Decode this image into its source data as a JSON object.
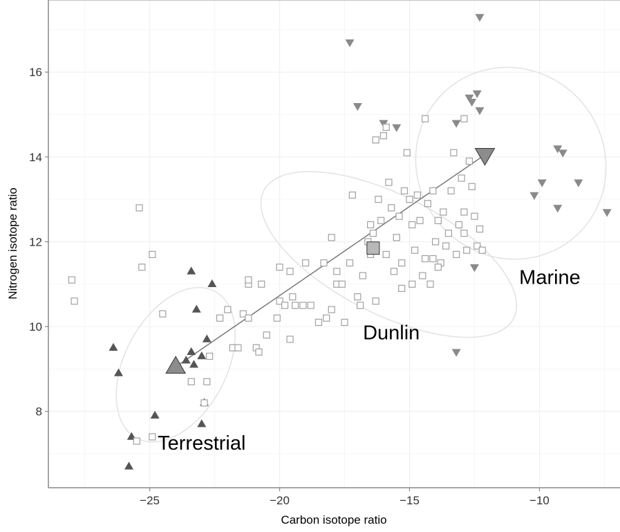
{
  "chart_data": {
    "type": "scatter",
    "title": "",
    "xlabel": "Carbon isotope ratio",
    "ylabel": "Nitrogen isotope ratio",
    "xlim": [
      -28.9,
      -6.9
    ],
    "ylim": [
      6.2,
      17.7
    ],
    "xticks": [
      -25,
      -20,
      -15,
      -10
    ],
    "yticks": [
      8,
      10,
      12,
      14,
      16
    ],
    "xtick_labels": [
      "−25",
      "−20",
      "−15",
      "−10"
    ],
    "ytick_labels": [
      "8",
      "10",
      "12",
      "14",
      "16"
    ],
    "grid": true,
    "legend": "none",
    "colors": {
      "terrestrial": "#555555",
      "marine": "#8a8a8a",
      "dunlin": "#a0a0a0",
      "mixing_line": "#777777",
      "ellipse": "#e2e2e2",
      "grid": "#f0f0f0",
      "axis": "#888888"
    },
    "labels": [
      {
        "text": "Terrestrial",
        "x": -23.0,
        "y": 7.1
      },
      {
        "text": "Dunlin",
        "x": -15.7,
        "y": 9.7
      },
      {
        "text": "Marine",
        "x": -9.6,
        "y": 11.0
      }
    ],
    "series": [
      {
        "group": "Terrestrial",
        "marker": "triangle-up",
        "points": [
          [
            -26.4,
            9.5
          ],
          [
            -26.2,
            8.9
          ],
          [
            -25.8,
            6.7
          ],
          [
            -25.7,
            7.4
          ],
          [
            -24.8,
            7.9
          ],
          [
            -23.6,
            9.2
          ],
          [
            -23.4,
            9.4
          ],
          [
            -23.3,
            9.1
          ],
          [
            -23.4,
            11.3
          ],
          [
            -23.2,
            10.4
          ],
          [
            -22.6,
            11.0
          ],
          [
            -22.8,
            9.7
          ],
          [
            -23.0,
            9.3
          ],
          [
            -22.9,
            8.2
          ],
          [
            -23.0,
            7.7
          ]
        ]
      },
      {
        "group": "Marine",
        "marker": "triangle-down",
        "points": [
          [
            -17.3,
            16.7
          ],
          [
            -17.0,
            15.2
          ],
          [
            -16.0,
            14.8
          ],
          [
            -15.5,
            14.7
          ],
          [
            -13.2,
            14.8
          ],
          [
            -12.7,
            15.4
          ],
          [
            -12.6,
            15.3
          ],
          [
            -12.4,
            15.5
          ],
          [
            -12.3,
            15.1
          ],
          [
            -12.3,
            17.3
          ],
          [
            -10.2,
            13.1
          ],
          [
            -9.9,
            13.4
          ],
          [
            -9.3,
            12.8
          ],
          [
            -9.3,
            14.2
          ],
          [
            -9.1,
            14.1
          ],
          [
            -8.5,
            13.4
          ],
          [
            -7.4,
            12.7
          ],
          [
            -12.5,
            11.4
          ],
          [
            -13.2,
            9.4
          ]
        ]
      },
      {
        "group": "Dunlin",
        "marker": "square",
        "points": [
          [
            -28.0,
            11.1
          ],
          [
            -27.9,
            10.6
          ],
          [
            -25.4,
            12.8
          ],
          [
            -25.3,
            11.4
          ],
          [
            -24.9,
            11.7
          ],
          [
            -24.9,
            7.4
          ],
          [
            -25.5,
            7.3
          ],
          [
            -24.5,
            10.3
          ],
          [
            -23.4,
            8.7
          ],
          [
            -22.8,
            8.7
          ],
          [
            -22.9,
            8.2
          ],
          [
            -22.7,
            9.3
          ],
          [
            -22.3,
            10.2
          ],
          [
            -22.0,
            10.4
          ],
          [
            -21.8,
            9.5
          ],
          [
            -21.6,
            9.5
          ],
          [
            -21.4,
            10.3
          ],
          [
            -21.2,
            10.2
          ],
          [
            -21.2,
            11.0
          ],
          [
            -21.2,
            11.1
          ],
          [
            -20.9,
            9.5
          ],
          [
            -20.8,
            9.4
          ],
          [
            -20.7,
            11.0
          ],
          [
            -20.5,
            9.8
          ],
          [
            -20.1,
            10.2
          ],
          [
            -20.0,
            10.6
          ],
          [
            -20.0,
            11.4
          ],
          [
            -19.8,
            10.5
          ],
          [
            -19.6,
            11.3
          ],
          [
            -19.6,
            9.7
          ],
          [
            -19.5,
            10.7
          ],
          [
            -19.4,
            10.5
          ],
          [
            -19.1,
            10.5
          ],
          [
            -19.0,
            11.5
          ],
          [
            -18.8,
            10.5
          ],
          [
            -18.5,
            10.1
          ],
          [
            -18.3,
            11.5
          ],
          [
            -18.2,
            10.2
          ],
          [
            -18.0,
            12.1
          ],
          [
            -18.0,
            10.4
          ],
          [
            -17.8,
            11.3
          ],
          [
            -17.8,
            11.0
          ],
          [
            -17.6,
            11.0
          ],
          [
            -17.5,
            10.1
          ],
          [
            -17.3,
            11.5
          ],
          [
            -17.2,
            13.1
          ],
          [
            -17.0,
            10.7
          ],
          [
            -16.9,
            10.5
          ],
          [
            -16.8,
            11.2
          ],
          [
            -16.6,
            12.0
          ],
          [
            -16.5,
            12.4
          ],
          [
            -16.5,
            11.7
          ],
          [
            -16.4,
            12.2
          ],
          [
            -16.3,
            10.6
          ],
          [
            -16.3,
            14.4
          ],
          [
            -16.2,
            13.0
          ],
          [
            -16.1,
            12.5
          ],
          [
            -16.0,
            14.5
          ],
          [
            -15.9,
            11.7
          ],
          [
            -15.8,
            13.4
          ],
          [
            -15.7,
            12.8
          ],
          [
            -15.6,
            11.3
          ],
          [
            -15.5,
            12.1
          ],
          [
            -15.4,
            12.6
          ],
          [
            -15.3,
            11.5
          ],
          [
            -15.2,
            13.2
          ],
          [
            -15.1,
            14.1
          ],
          [
            -15.0,
            13.0
          ],
          [
            -14.9,
            12.4
          ],
          [
            -14.8,
            11.8
          ],
          [
            -14.7,
            13.1
          ],
          [
            -14.6,
            12.5
          ],
          [
            -14.5,
            11.2
          ],
          [
            -14.4,
            11.6
          ],
          [
            -14.3,
            12.9
          ],
          [
            -14.2,
            11.0
          ],
          [
            -14.1,
            13.2
          ],
          [
            -14.0,
            12.0
          ],
          [
            -13.9,
            12.5
          ],
          [
            -13.8,
            11.5
          ],
          [
            -13.7,
            12.7
          ],
          [
            -13.6,
            11.9
          ],
          [
            -13.5,
            12.2
          ],
          [
            -13.4,
            13.2
          ],
          [
            -13.3,
            14.1
          ],
          [
            -13.2,
            11.7
          ],
          [
            -13.1,
            12.4
          ],
          [
            -13.0,
            13.5
          ],
          [
            -12.9,
            12.7
          ],
          [
            -12.8,
            11.8
          ],
          [
            -12.7,
            13.9
          ],
          [
            -12.6,
            13.3
          ],
          [
            -12.5,
            12.6
          ],
          [
            -12.4,
            11.9
          ],
          [
            -12.3,
            12.3
          ],
          [
            -12.2,
            11.8
          ],
          [
            -14.9,
            11.0
          ],
          [
            -15.3,
            10.9
          ],
          [
            -14.1,
            11.6
          ],
          [
            -13.9,
            11.4
          ],
          [
            -12.9,
            14.9
          ],
          [
            -12.9,
            12.2
          ],
          [
            -14.4,
            14.9
          ],
          [
            -15.9,
            14.7
          ]
        ]
      }
    ],
    "sources": [
      {
        "group": "Terrestrial",
        "x": -24.0,
        "y": 9.05
      },
      {
        "group": "Marine",
        "x": -12.1,
        "y": 14.05
      }
    ],
    "dunlin_mean": {
      "x": -16.4,
      "y": 11.85
    },
    "ellipses": [
      {
        "cx": -24.0,
        "cy": 9.1,
        "rx": 3.2,
        "ry": 1.2,
        "angle_deg": -62
      },
      {
        "cx": -15.8,
        "cy": 11.7,
        "rx": 5.4,
        "ry": 1.4,
        "angle_deg": 27
      },
      {
        "cx": -11.1,
        "cy": 13.85,
        "rx": 3.6,
        "ry": 2.3,
        "angle_deg": -40
      }
    ]
  }
}
